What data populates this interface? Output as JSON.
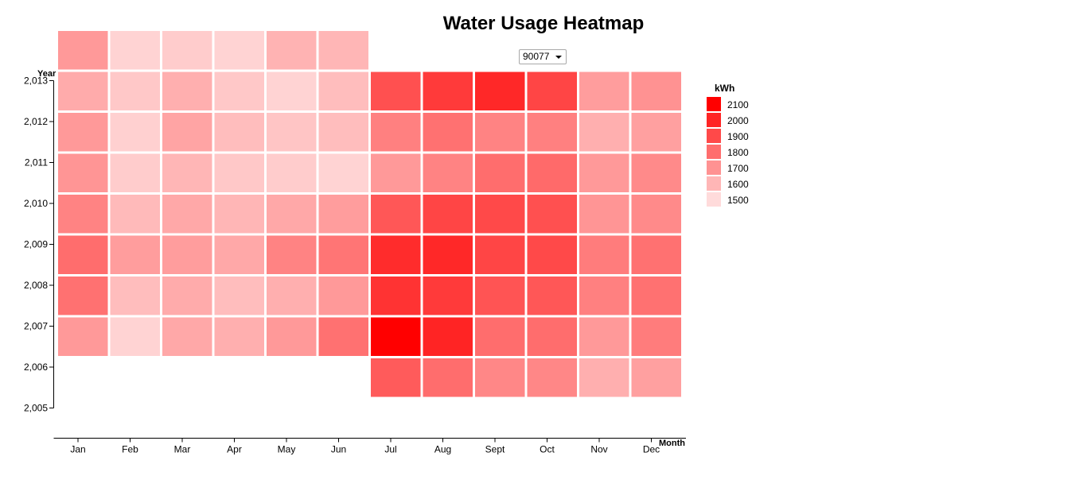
{
  "page": {
    "title": "Water Usage Heatmap",
    "zip_select": {
      "value": "90077",
      "icon": "chevron-down-icon"
    }
  },
  "chart_data": {
    "type": "heatmap",
    "title": "Water Usage Heatmap",
    "xlabel": "Month",
    "ylabel": "Year",
    "x_categories": [
      "Jan",
      "Feb",
      "Mar",
      "Apr",
      "May",
      "Jun",
      "Jul",
      "Aug",
      "Sept",
      "Oct",
      "Nov",
      "Dec"
    ],
    "y_ticks": [
      "2,005",
      "2,006",
      "2,007",
      "2,008",
      "2,009",
      "2,010",
      "2,011",
      "2,012",
      "2,013"
    ],
    "y_range": [
      2005,
      2013
    ],
    "legend": {
      "title": "kWh",
      "placement": "right",
      "entries": [
        {
          "label": "2100",
          "value": 2100
        },
        {
          "label": "2000",
          "value": 2000
        },
        {
          "label": "1900",
          "value": 1900
        },
        {
          "label": "1800",
          "value": 1800
        },
        {
          "label": "1700",
          "value": 1700
        },
        {
          "label": "1600",
          "value": 1600
        },
        {
          "label": "1500",
          "value": 1500
        }
      ]
    },
    "color_scale": {
      "low": "#ffffff",
      "high": "#ff0000",
      "domain": [
        1400,
        2100
      ]
    },
    "cells": [
      {
        "year": 2005,
        "month": "Jul",
        "value": 1850
      },
      {
        "year": 2005,
        "month": "Aug",
        "value": 1800
      },
      {
        "year": 2005,
        "month": "Sept",
        "value": 1730
      },
      {
        "year": 2005,
        "month": "Oct",
        "value": 1730
      },
      {
        "year": 2005,
        "month": "Nov",
        "value": 1620
      },
      {
        "year": 2005,
        "month": "Dec",
        "value": 1660
      },
      {
        "year": 2006,
        "month": "Jan",
        "value": 1680
      },
      {
        "year": 2006,
        "month": "Feb",
        "value": 1520
      },
      {
        "year": 2006,
        "month": "Mar",
        "value": 1640
      },
      {
        "year": 2006,
        "month": "Apr",
        "value": 1620
      },
      {
        "year": 2006,
        "month": "May",
        "value": 1680
      },
      {
        "year": 2006,
        "month": "Jun",
        "value": 1790
      },
      {
        "year": 2006,
        "month": "Jul",
        "value": 2100
      },
      {
        "year": 2006,
        "month": "Aug",
        "value": 2000
      },
      {
        "year": 2006,
        "month": "Sept",
        "value": 1800
      },
      {
        "year": 2006,
        "month": "Oct",
        "value": 1800
      },
      {
        "year": 2006,
        "month": "Nov",
        "value": 1680
      },
      {
        "year": 2006,
        "month": "Dec",
        "value": 1760
      },
      {
        "year": 2007,
        "month": "Jan",
        "value": 1790
      },
      {
        "year": 2007,
        "month": "Feb",
        "value": 1580
      },
      {
        "year": 2007,
        "month": "Mar",
        "value": 1630
      },
      {
        "year": 2007,
        "month": "Apr",
        "value": 1580
      },
      {
        "year": 2007,
        "month": "May",
        "value": 1620
      },
      {
        "year": 2007,
        "month": "Jun",
        "value": 1680
      },
      {
        "year": 2007,
        "month": "Jul",
        "value": 1960
      },
      {
        "year": 2007,
        "month": "Aug",
        "value": 1940
      },
      {
        "year": 2007,
        "month": "Sept",
        "value": 1870
      },
      {
        "year": 2007,
        "month": "Oct",
        "value": 1860
      },
      {
        "year": 2007,
        "month": "Nov",
        "value": 1750
      },
      {
        "year": 2007,
        "month": "Dec",
        "value": 1790
      },
      {
        "year": 2008,
        "month": "Jan",
        "value": 1800
      },
      {
        "year": 2008,
        "month": "Feb",
        "value": 1670
      },
      {
        "year": 2008,
        "month": "Mar",
        "value": 1670
      },
      {
        "year": 2008,
        "month": "Apr",
        "value": 1640
      },
      {
        "year": 2008,
        "month": "May",
        "value": 1740
      },
      {
        "year": 2008,
        "month": "Jun",
        "value": 1780
      },
      {
        "year": 2008,
        "month": "Jul",
        "value": 1980
      },
      {
        "year": 2008,
        "month": "Aug",
        "value": 1990
      },
      {
        "year": 2008,
        "month": "Sept",
        "value": 1910
      },
      {
        "year": 2008,
        "month": "Oct",
        "value": 1900
      },
      {
        "year": 2008,
        "month": "Nov",
        "value": 1760
      },
      {
        "year": 2008,
        "month": "Dec",
        "value": 1790
      },
      {
        "year": 2009,
        "month": "Jan",
        "value": 1740
      },
      {
        "year": 2009,
        "month": "Feb",
        "value": 1590
      },
      {
        "year": 2009,
        "month": "Mar",
        "value": 1640
      },
      {
        "year": 2009,
        "month": "Apr",
        "value": 1600
      },
      {
        "year": 2009,
        "month": "May",
        "value": 1640
      },
      {
        "year": 2009,
        "month": "Jun",
        "value": 1670
      },
      {
        "year": 2009,
        "month": "Jul",
        "value": 1860
      },
      {
        "year": 2009,
        "month": "Aug",
        "value": 1910
      },
      {
        "year": 2009,
        "month": "Sept",
        "value": 1900
      },
      {
        "year": 2009,
        "month": "Oct",
        "value": 1880
      },
      {
        "year": 2009,
        "month": "Nov",
        "value": 1690
      },
      {
        "year": 2009,
        "month": "Dec",
        "value": 1720
      },
      {
        "year": 2010,
        "month": "Jan",
        "value": 1690
      },
      {
        "year": 2010,
        "month": "Feb",
        "value": 1540
      },
      {
        "year": 2010,
        "month": "Mar",
        "value": 1600
      },
      {
        "year": 2010,
        "month": "Apr",
        "value": 1550
      },
      {
        "year": 2010,
        "month": "May",
        "value": 1540
      },
      {
        "year": 2010,
        "month": "Jun",
        "value": 1520
      },
      {
        "year": 2010,
        "month": "Jul",
        "value": 1680
      },
      {
        "year": 2010,
        "month": "Aug",
        "value": 1740
      },
      {
        "year": 2010,
        "month": "Sept",
        "value": 1800
      },
      {
        "year": 2010,
        "month": "Oct",
        "value": 1810
      },
      {
        "year": 2010,
        "month": "Nov",
        "value": 1680
      },
      {
        "year": 2010,
        "month": "Dec",
        "value": 1720
      },
      {
        "year": 2011,
        "month": "Jan",
        "value": 1680
      },
      {
        "year": 2011,
        "month": "Feb",
        "value": 1530
      },
      {
        "year": 2011,
        "month": "Mar",
        "value": 1650
      },
      {
        "year": 2011,
        "month": "Apr",
        "value": 1580
      },
      {
        "year": 2011,
        "month": "May",
        "value": 1560
      },
      {
        "year": 2011,
        "month": "Jun",
        "value": 1580
      },
      {
        "year": 2011,
        "month": "Jul",
        "value": 1750
      },
      {
        "year": 2011,
        "month": "Aug",
        "value": 1790
      },
      {
        "year": 2011,
        "month": "Sept",
        "value": 1740
      },
      {
        "year": 2011,
        "month": "Oct",
        "value": 1750
      },
      {
        "year": 2011,
        "month": "Nov",
        "value": 1620
      },
      {
        "year": 2011,
        "month": "Dec",
        "value": 1660
      },
      {
        "year": 2012,
        "month": "Jan",
        "value": 1630
      },
      {
        "year": 2012,
        "month": "Feb",
        "value": 1550
      },
      {
        "year": 2012,
        "month": "Mar",
        "value": 1620
      },
      {
        "year": 2012,
        "month": "Apr",
        "value": 1550
      },
      {
        "year": 2012,
        "month": "May",
        "value": 1520
      },
      {
        "year": 2012,
        "month": "Jun",
        "value": 1580
      },
      {
        "year": 2012,
        "month": "Jul",
        "value": 1880
      },
      {
        "year": 2012,
        "month": "Aug",
        "value": 1940
      },
      {
        "year": 2012,
        "month": "Sept",
        "value": 1990
      },
      {
        "year": 2012,
        "month": "Oct",
        "value": 1910
      },
      {
        "year": 2012,
        "month": "Nov",
        "value": 1670
      },
      {
        "year": 2012,
        "month": "Dec",
        "value": 1700
      },
      {
        "year": 2013,
        "month": "Jan",
        "value": 1680
      },
      {
        "year": 2013,
        "month": "Feb",
        "value": 1520
      },
      {
        "year": 2013,
        "month": "Mar",
        "value": 1540
      },
      {
        "year": 2013,
        "month": "Apr",
        "value": 1520
      },
      {
        "year": 2013,
        "month": "May",
        "value": 1610
      },
      {
        "year": 2013,
        "month": "Jun",
        "value": 1600
      }
    ]
  }
}
